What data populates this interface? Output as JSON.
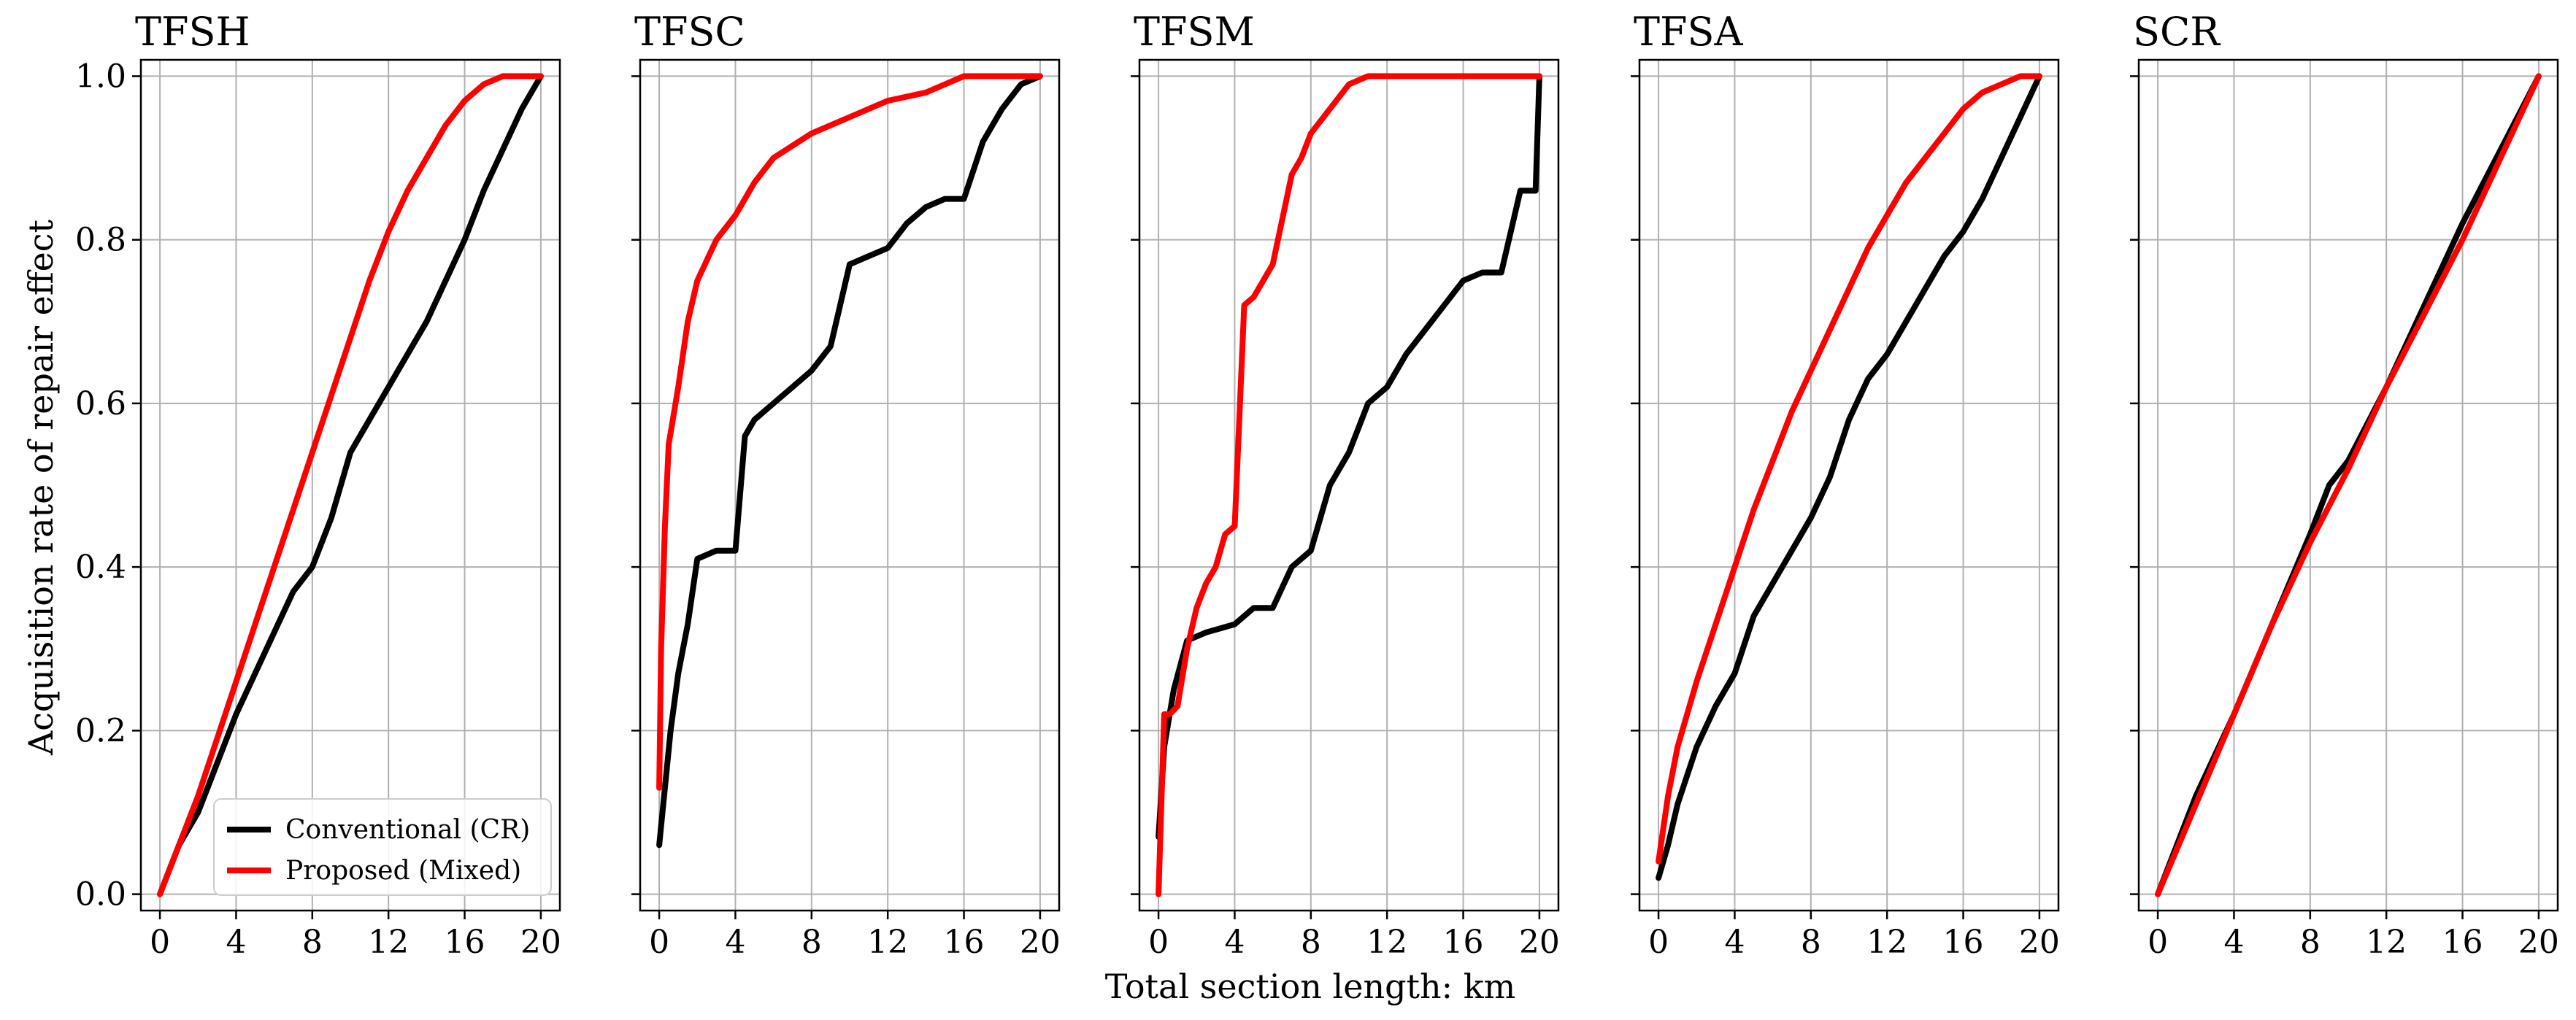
{
  "figure": {
    "xlabel": "Total section length: km",
    "ylabel": "Acquisition rate of repair effect"
  },
  "legend": {
    "location": "lower-right of first panel",
    "entries": [
      {
        "label": "Conventional (CR)",
        "color": "#000000"
      },
      {
        "label": "Proposed (Mixed)",
        "color": "#ff0000"
      }
    ]
  },
  "colors": {
    "conventional": "#000000",
    "proposed": "#ff0000",
    "grid": "#b0b0b0"
  },
  "chart_data": [
    {
      "type": "line",
      "title": "TFSH",
      "xlim": [
        -1,
        21
      ],
      "ylim": [
        -0.02,
        1.02
      ],
      "xticks": [
        0,
        4,
        8,
        12,
        16,
        20
      ],
      "yticks": [
        0.0,
        0.2,
        0.4,
        0.6,
        0.8,
        1.0
      ],
      "ytick_labels": [
        "0.0",
        "0.2",
        "0.4",
        "0.6",
        "0.8",
        "1.0"
      ],
      "grid": true,
      "series": [
        {
          "name": "Conventional (CR)",
          "color": "#000000",
          "x": [
            0,
            0.5,
            1,
            2,
            3,
            4,
            5,
            6,
            7,
            8,
            9,
            10,
            11,
            12,
            13,
            14,
            15,
            16,
            17,
            18,
            19,
            20
          ],
          "y": [
            0.0,
            0.03,
            0.06,
            0.1,
            0.16,
            0.22,
            0.27,
            0.32,
            0.37,
            0.4,
            0.46,
            0.54,
            0.58,
            0.62,
            0.66,
            0.7,
            0.75,
            0.8,
            0.86,
            0.91,
            0.96,
            1.0
          ]
        },
        {
          "name": "Proposed (Mixed)",
          "color": "#ff0000",
          "x": [
            0,
            0.5,
            1,
            2,
            3,
            4,
            5,
            6,
            7,
            8,
            9,
            10,
            11,
            12,
            13,
            14,
            15,
            16,
            17,
            18,
            19,
            20
          ],
          "y": [
            0.0,
            0.03,
            0.06,
            0.12,
            0.19,
            0.26,
            0.33,
            0.4,
            0.47,
            0.54,
            0.61,
            0.68,
            0.75,
            0.81,
            0.86,
            0.9,
            0.94,
            0.97,
            0.99,
            1.0,
            1.0,
            1.0
          ]
        }
      ]
    },
    {
      "type": "line",
      "title": "TFSC",
      "xlim": [
        -1,
        21
      ],
      "ylim": [
        -0.02,
        1.02
      ],
      "xticks": [
        0,
        4,
        8,
        12,
        16,
        20
      ],
      "yticks": [
        0.0,
        0.2,
        0.4,
        0.6,
        0.8,
        1.0
      ],
      "ytick_labels": [],
      "grid": true,
      "series": [
        {
          "name": "Conventional (CR)",
          "color": "#000000",
          "x": [
            0,
            0.3,
            0.6,
            1.0,
            1.5,
            2.0,
            3.0,
            4.0,
            4.5,
            5.0,
            6.0,
            7.0,
            8.0,
            9.0,
            10.0,
            11.0,
            12.0,
            13.0,
            14.0,
            15.0,
            16.0,
            17.0,
            18.0,
            19.0,
            20.0
          ],
          "y": [
            0.06,
            0.13,
            0.2,
            0.27,
            0.33,
            0.41,
            0.42,
            0.42,
            0.56,
            0.58,
            0.6,
            0.62,
            0.64,
            0.67,
            0.77,
            0.78,
            0.79,
            0.82,
            0.84,
            0.85,
            0.85,
            0.92,
            0.96,
            0.99,
            1.0
          ]
        },
        {
          "name": "Proposed (Mixed)",
          "color": "#ff0000",
          "x": [
            0,
            0.1,
            0.3,
            0.5,
            1.0,
            1.5,
            2.0,
            3.0,
            4.0,
            5.0,
            6.0,
            8.0,
            10.0,
            12.0,
            14.0,
            16.0,
            18.0,
            20.0
          ],
          "y": [
            0.13,
            0.3,
            0.45,
            0.55,
            0.62,
            0.7,
            0.75,
            0.8,
            0.83,
            0.87,
            0.9,
            0.93,
            0.95,
            0.97,
            0.98,
            1.0,
            1.0,
            1.0
          ]
        }
      ]
    },
    {
      "type": "line",
      "title": "TFSM",
      "xlim": [
        -1,
        21
      ],
      "ylim": [
        -0.02,
        1.02
      ],
      "xticks": [
        0,
        4,
        8,
        12,
        16,
        20
      ],
      "yticks": [
        0.0,
        0.2,
        0.4,
        0.6,
        0.8,
        1.0
      ],
      "ytick_labels": [],
      "grid": true,
      "series": [
        {
          "name": "Conventional (CR)",
          "color": "#000000",
          "x": [
            0,
            0.3,
            0.8,
            1.5,
            2.5,
            4.0,
            5.0,
            6.0,
            7.0,
            8.0,
            9.0,
            10.0,
            11.0,
            12.0,
            13.0,
            14.0,
            15.0,
            16.0,
            17.0,
            18.0,
            19.0,
            19.8,
            20.0
          ],
          "y": [
            0.07,
            0.18,
            0.25,
            0.31,
            0.32,
            0.33,
            0.35,
            0.35,
            0.4,
            0.42,
            0.5,
            0.54,
            0.6,
            0.62,
            0.66,
            0.69,
            0.72,
            0.75,
            0.76,
            0.76,
            0.86,
            0.86,
            1.0
          ]
        },
        {
          "name": "Proposed (Mixed)",
          "color": "#ff0000",
          "x": [
            0,
            0.3,
            0.6,
            1.0,
            1.5,
            2.0,
            2.5,
            3.0,
            3.5,
            4.0,
            4.5,
            5.0,
            6.0,
            7.0,
            7.5,
            8.0,
            9.0,
            10.0,
            11.0,
            12.0,
            16.0,
            20.0
          ],
          "y": [
            0.0,
            0.22,
            0.22,
            0.23,
            0.3,
            0.35,
            0.38,
            0.4,
            0.44,
            0.45,
            0.72,
            0.73,
            0.77,
            0.88,
            0.9,
            0.93,
            0.96,
            0.99,
            1.0,
            1.0,
            1.0,
            1.0
          ]
        }
      ]
    },
    {
      "type": "line",
      "title": "TFSA",
      "xlim": [
        -1,
        21
      ],
      "ylim": [
        -0.02,
        1.02
      ],
      "xticks": [
        0,
        4,
        8,
        12,
        16,
        20
      ],
      "yticks": [
        0.0,
        0.2,
        0.4,
        0.6,
        0.8,
        1.0
      ],
      "ytick_labels": [],
      "grid": true,
      "series": [
        {
          "name": "Conventional (CR)",
          "color": "#000000",
          "x": [
            0,
            0.5,
            1,
            2,
            3,
            4,
            5,
            6,
            7,
            8,
            9,
            10,
            11,
            12,
            13,
            14,
            15,
            16,
            17,
            18,
            19,
            20
          ],
          "y": [
            0.02,
            0.06,
            0.11,
            0.18,
            0.23,
            0.27,
            0.34,
            0.38,
            0.42,
            0.46,
            0.51,
            0.58,
            0.63,
            0.66,
            0.7,
            0.74,
            0.78,
            0.81,
            0.85,
            0.9,
            0.95,
            1.0
          ]
        },
        {
          "name": "Proposed (Mixed)",
          "color": "#ff0000",
          "x": [
            0,
            0.5,
            1,
            2,
            3,
            4,
            5,
            6,
            7,
            8,
            9,
            10,
            11,
            12,
            13,
            14,
            15,
            16,
            17,
            18,
            19,
            20
          ],
          "y": [
            0.04,
            0.12,
            0.18,
            0.26,
            0.33,
            0.4,
            0.47,
            0.53,
            0.59,
            0.64,
            0.69,
            0.74,
            0.79,
            0.83,
            0.87,
            0.9,
            0.93,
            0.96,
            0.98,
            0.99,
            1.0,
            1.0
          ]
        }
      ]
    },
    {
      "type": "line",
      "title": "SCR",
      "xlim": [
        -1,
        21
      ],
      "ylim": [
        -0.02,
        1.02
      ],
      "xticks": [
        0,
        4,
        8,
        12,
        16,
        20
      ],
      "yticks": [
        0.0,
        0.2,
        0.4,
        0.6,
        0.8,
        1.0
      ],
      "ytick_labels": [],
      "grid": true,
      "series": [
        {
          "name": "Conventional (CR)",
          "color": "#000000",
          "x": [
            0,
            2,
            4,
            6,
            8,
            9,
            10,
            12,
            14,
            16,
            18,
            20
          ],
          "y": [
            0.0,
            0.12,
            0.22,
            0.33,
            0.44,
            0.5,
            0.53,
            0.62,
            0.72,
            0.82,
            0.91,
            1.0
          ]
        },
        {
          "name": "Proposed (Mixed)",
          "color": "#ff0000",
          "x": [
            0,
            2,
            4,
            6,
            8,
            10,
            12,
            14,
            16,
            18,
            20
          ],
          "y": [
            0.0,
            0.11,
            0.22,
            0.33,
            0.43,
            0.52,
            0.62,
            0.71,
            0.8,
            0.9,
            1.0
          ]
        }
      ]
    }
  ]
}
